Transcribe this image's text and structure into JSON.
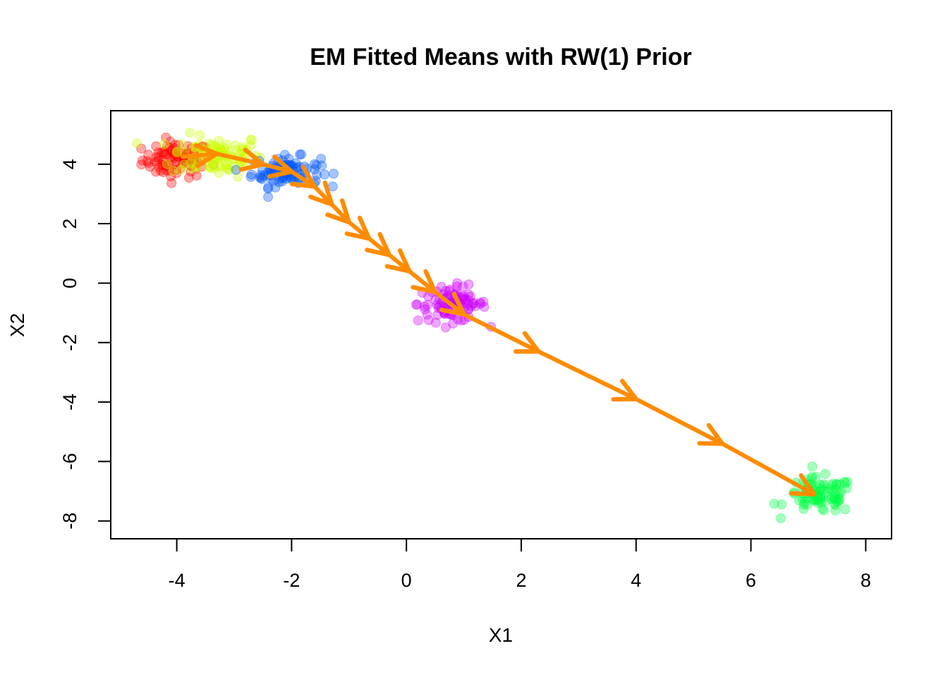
{
  "chart_data": {
    "type": "scatter",
    "title": "EM Fitted Means with RW(1) Prior",
    "xlabel": "X1",
    "ylabel": "X2",
    "xlim": [
      -5.15,
      8.45
    ],
    "ylim": [
      -8.6,
      5.8
    ],
    "x_ticks": [
      -4,
      -2,
      0,
      2,
      4,
      6,
      8
    ],
    "y_ticks": [
      -8,
      -6,
      -4,
      -2,
      0,
      2,
      4
    ],
    "x_tick_labels": [
      "-4",
      "-2",
      "0",
      "2",
      "4",
      "6",
      "8"
    ],
    "y_tick_labels": [
      "-8",
      "-6",
      "-4",
      "-2",
      "0",
      "2",
      "4"
    ],
    "grid": false,
    "clusters": [
      {
        "color": "#ff0000",
        "center": [
          -4.0,
          4.15
        ],
        "spread": [
          0.3,
          0.3
        ],
        "n": 90
      },
      {
        "color": "#ccff00",
        "center": [
          -3.3,
          4.3
        ],
        "spread": [
          0.4,
          0.35
        ],
        "n": 90
      },
      {
        "color": "#0055ff",
        "center": [
          -2.1,
          3.75
        ],
        "spread": [
          0.3,
          0.25
        ],
        "n": 90
      },
      {
        "color": "#cc00ff",
        "center": [
          0.8,
          -0.7
        ],
        "spread": [
          0.3,
          0.3
        ],
        "n": 90
      },
      {
        "color": "#00ff44",
        "center": [
          7.2,
          -7.15
        ],
        "spread": [
          0.3,
          0.3
        ],
        "n": 90
      }
    ],
    "fitted_means": {
      "name": "",
      "color": "#ff8c00",
      "x": [
        -3.9,
        -3.3,
        -2.5,
        -2.0,
        -1.6,
        -1.3,
        -1.0,
        -0.65,
        -0.3,
        0.05,
        0.5,
        1.0,
        2.3,
        4.0,
        5.5,
        7.1
      ],
      "y": [
        4.25,
        4.35,
        4.0,
        3.75,
        3.25,
        2.65,
        2.05,
        1.5,
        0.95,
        0.4,
        -0.3,
        -1.05,
        -2.3,
        -3.9,
        -5.4,
        -7.1
      ]
    }
  }
}
